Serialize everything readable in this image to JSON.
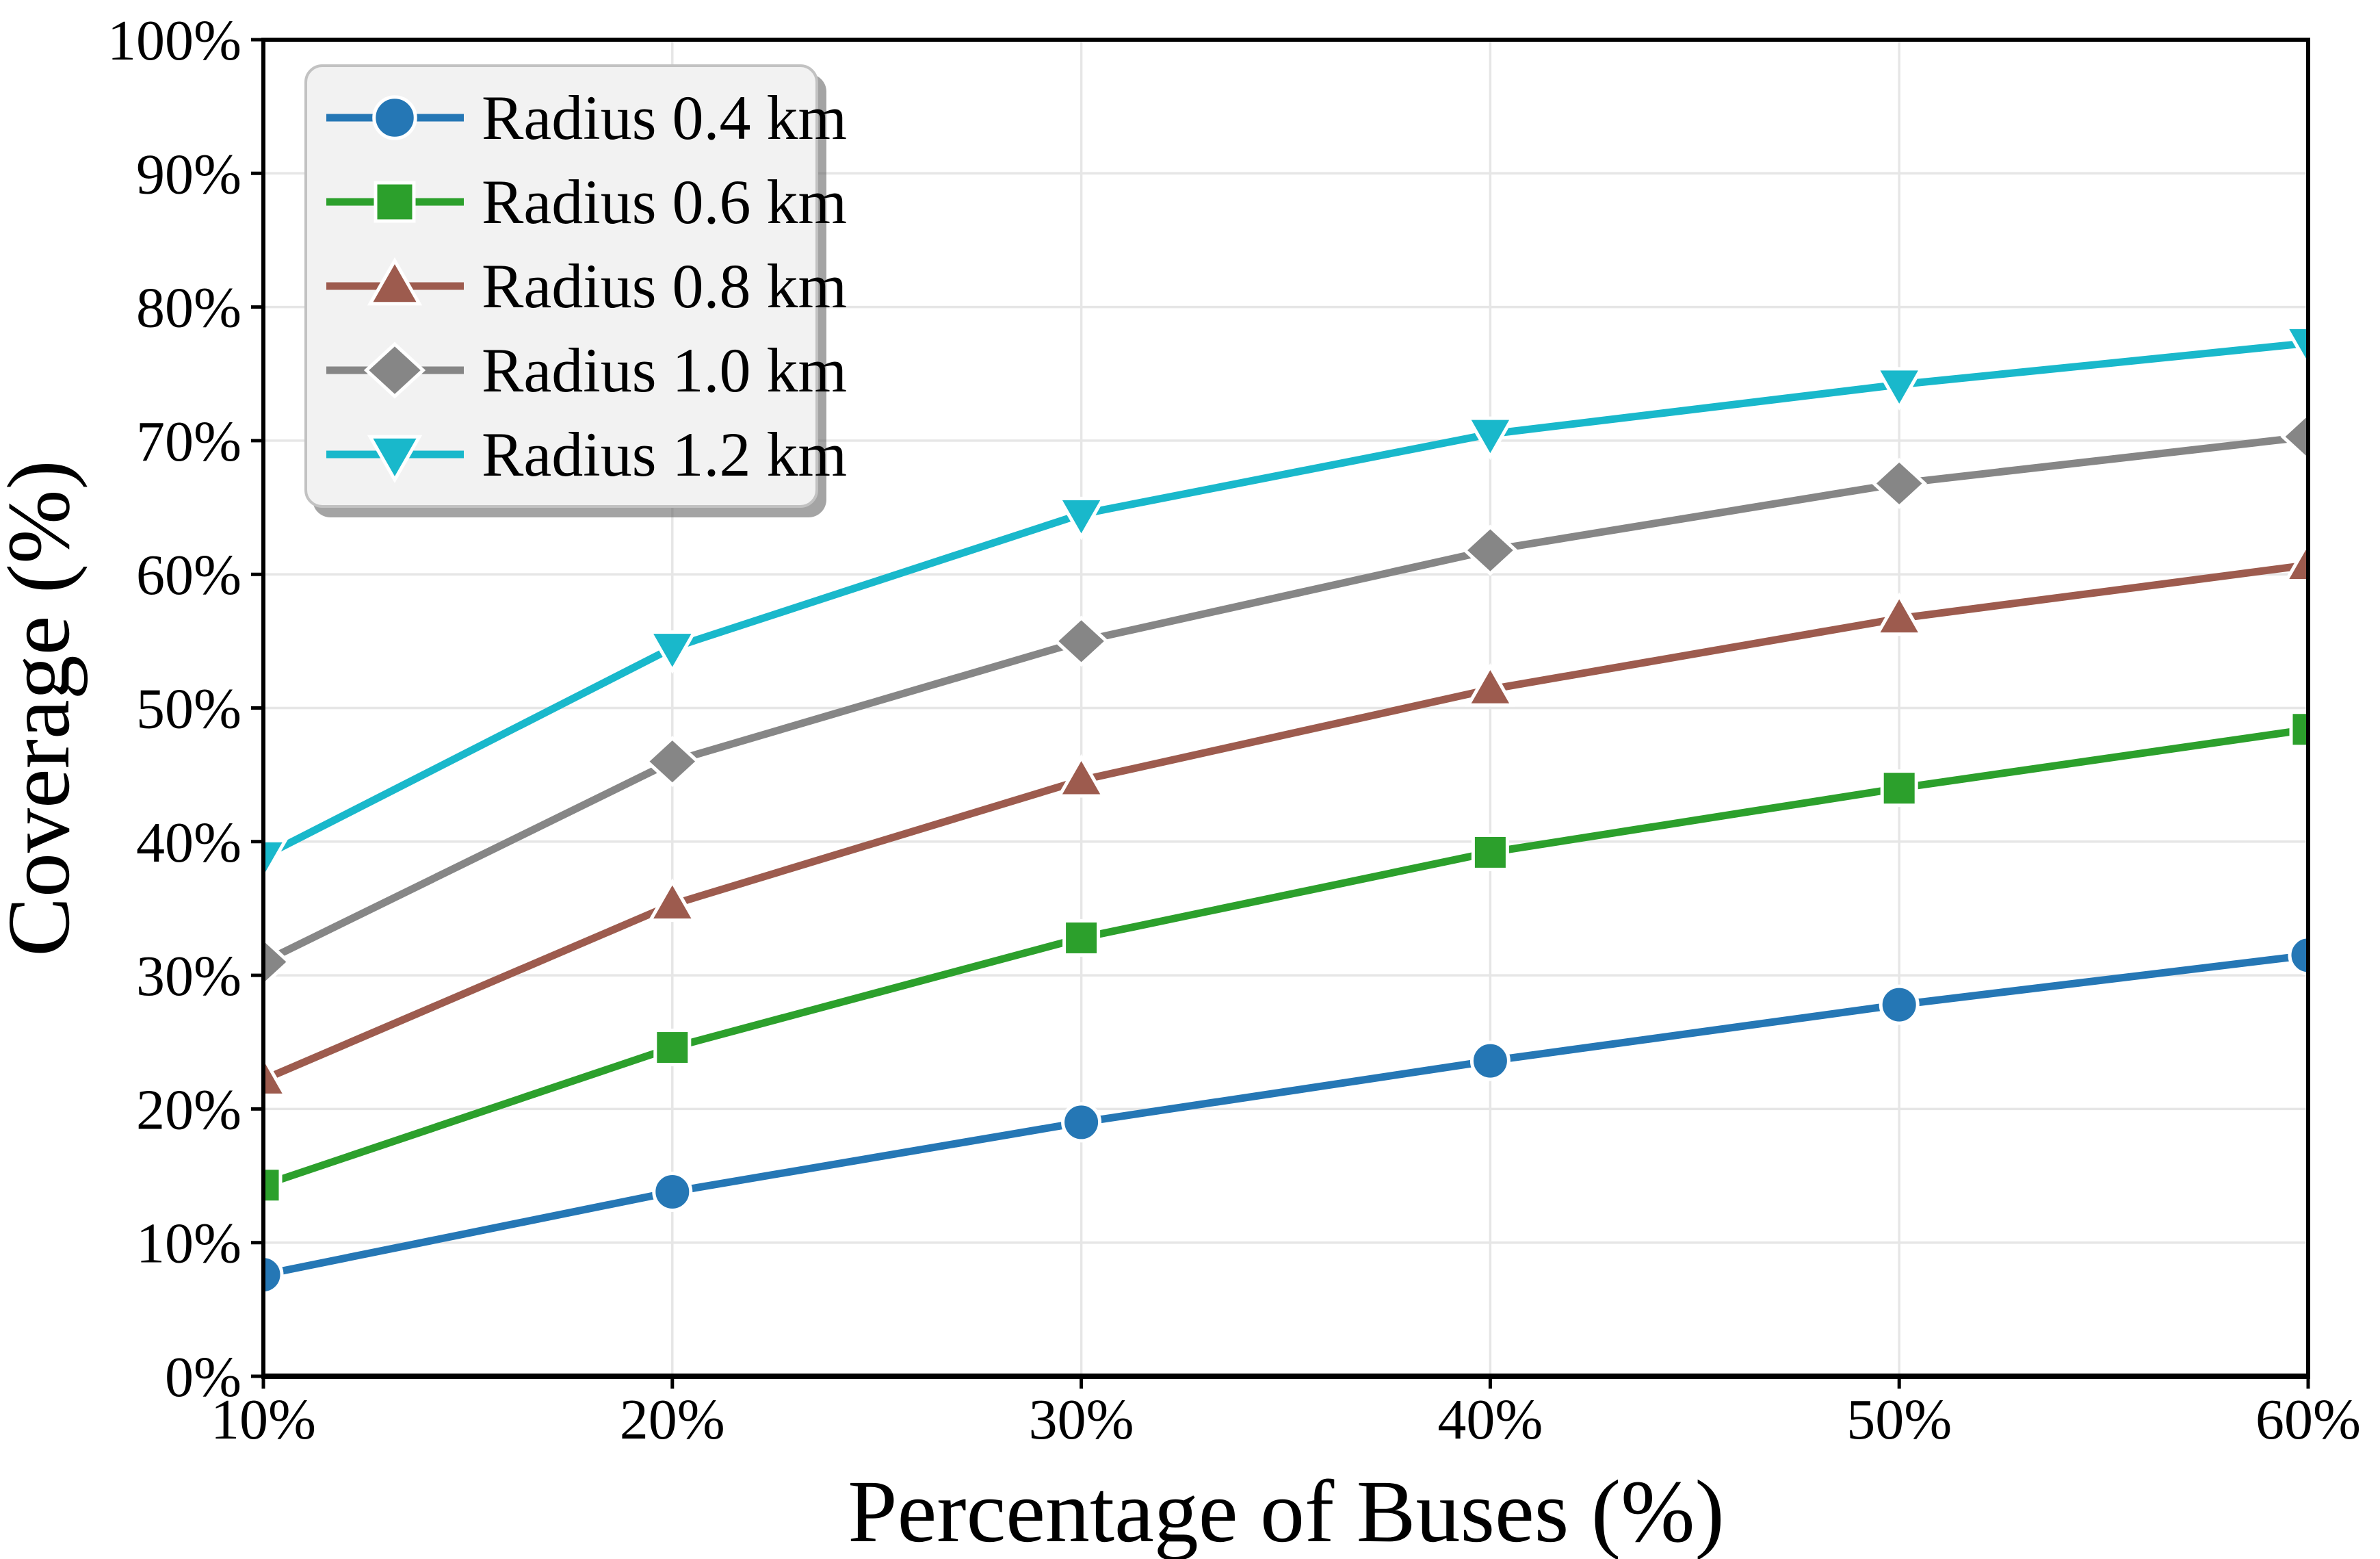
{
  "chart_data": {
    "type": "line",
    "title": "",
    "xlabel": "Percentage of Buses (%)",
    "ylabel": "Coverage (%)",
    "xlim": [
      10,
      60
    ],
    "ylim": [
      0,
      100
    ],
    "grid": true,
    "legend_position": "upper left",
    "x": [
      10,
      20,
      30,
      40,
      50,
      60
    ],
    "x_tick_labels": [
      "10%",
      "20%",
      "30%",
      "40%",
      "50%",
      "60%"
    ],
    "y_tick_values": [
      0,
      10,
      20,
      30,
      40,
      50,
      60,
      70,
      80,
      90,
      100
    ],
    "y_tick_labels": [
      "0%",
      "10%",
      "20%",
      "30%",
      "40%",
      "50%",
      "60%",
      "70%",
      "80%",
      "90%",
      "100%"
    ],
    "series": [
      {
        "name": "Radius 0.4 km",
        "marker": "circle",
        "color": "#2577b5",
        "values": [
          7.6,
          13.8,
          19.0,
          23.6,
          27.8,
          31.5
        ]
      },
      {
        "name": "Radius 0.6 km",
        "marker": "square",
        "color": "#2ca02c",
        "values": [
          14.3,
          24.6,
          32.8,
          39.2,
          44.0,
          48.4
        ]
      },
      {
        "name": "Radius 0.8 km",
        "marker": "triangle-up",
        "color": "#9d5b4e",
        "values": [
          22.2,
          35.3,
          44.6,
          51.4,
          56.7,
          60.7
        ]
      },
      {
        "name": "Radius 1.0 km",
        "marker": "diamond",
        "color": "#868686",
        "values": [
          31.0,
          46.0,
          55.0,
          61.8,
          66.8,
          70.3
        ]
      },
      {
        "name": "Radius 1.2 km",
        "marker": "triangle-down",
        "color": "#19b8cb",
        "values": [
          38.9,
          54.5,
          64.5,
          70.5,
          74.2,
          77.3
        ]
      }
    ],
    "colors": {
      "grid": "#e6e6e6",
      "axis": "#000000",
      "background": "#ffffff",
      "legend_background": "#f2f2f2",
      "legend_border": "#c2c2c2",
      "marker_edge": "#ffffff"
    }
  }
}
